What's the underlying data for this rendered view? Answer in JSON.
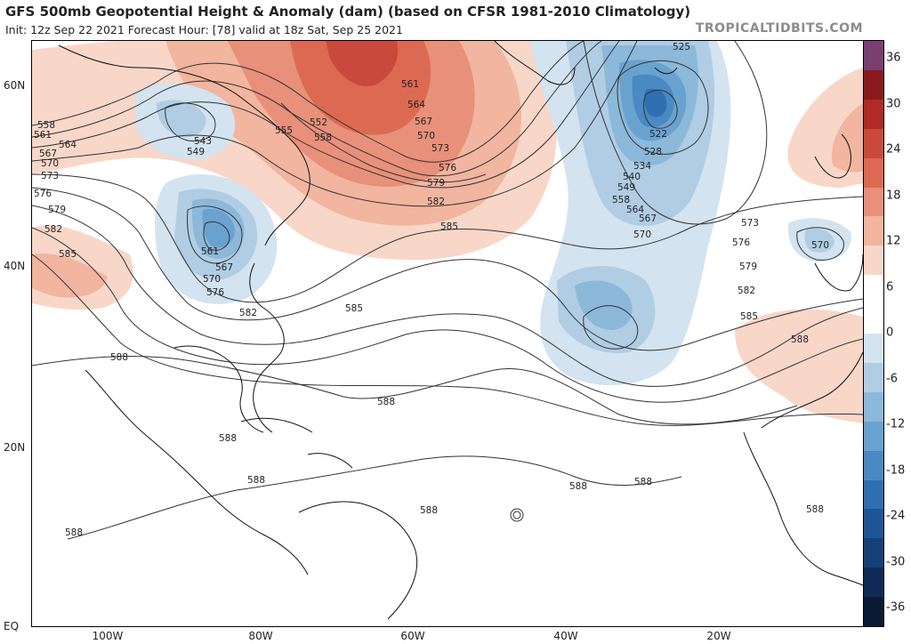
{
  "header": {
    "title": "GFS 500mb Geopotential Height & Anomaly (dam) (based on CFSR 1981-2010 Climatology)",
    "subtitle": "Init: 12z Sep 22 2021   Forecast Hour: [78]   valid at 18z Sat, Sep 25 2021",
    "brand": "TROPICALTIDBITS.COM"
  },
  "axes": {
    "lat_labels": [
      "60N",
      "40N",
      "20N",
      "EQ"
    ],
    "lon_labels": [
      "100W",
      "80W",
      "60W",
      "40W",
      "20W"
    ]
  },
  "colorbar": {
    "labels": [
      "36",
      "30",
      "24",
      "18",
      "12",
      "6",
      "0",
      "-6",
      "-12",
      "-18",
      "-24",
      "-30",
      "-36"
    ],
    "colors": [
      "#7a3f70",
      "#8a1a1c",
      "#b02a28",
      "#c94a3c",
      "#dc6a52",
      "#e8907a",
      "#f2b59f",
      "#f8d7c9",
      "#ffffff",
      "#ffffff",
      "#d3e3f0",
      "#b0cde4",
      "#8cb8da",
      "#6aa2cf",
      "#4a89c2",
      "#2f6fb0",
      "#1f5597",
      "#173f78",
      "#0f2a55",
      "#0a1a35"
    ]
  },
  "contours": {
    "labels": [
      "525",
      "522",
      "528",
      "534",
      "540",
      "549",
      "558",
      "564",
      "567",
      "570",
      "573",
      "576",
      "579",
      "582",
      "585",
      "588",
      "543",
      "549",
      "552",
      "555",
      "558",
      "561",
      "564",
      "567",
      "570",
      "573",
      "576",
      "579",
      "582",
      "585",
      "561",
      "567",
      "570",
      "576",
      "558",
      "561",
      "564",
      "567",
      "570",
      "573",
      "576",
      "579",
      "582",
      "585",
      "582",
      "585",
      "588",
      "588",
      "588",
      "588",
      "588",
      "588",
      "588",
      "588",
      "570",
      "588"
    ]
  }
}
